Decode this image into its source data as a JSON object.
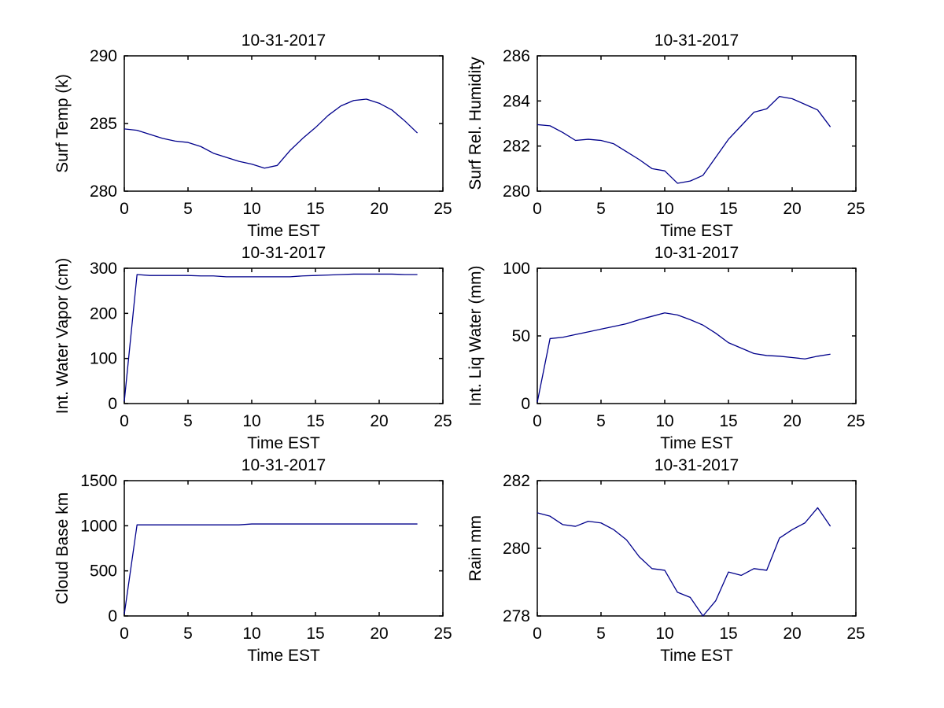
{
  "figure": {
    "background": "#ffffff",
    "line_color": "#00008B",
    "axis_color": "#000000"
  },
  "chart_data": [
    {
      "id": "surf-temp",
      "type": "line",
      "title": "10-31-2017",
      "xlabel": "Time EST",
      "ylabel": "Surf Temp (k)",
      "xlim": [
        0,
        25
      ],
      "ylim": [
        280,
        290
      ],
      "xticks": [
        0,
        5,
        10,
        15,
        20,
        25
      ],
      "yticks": [
        280,
        285,
        290
      ],
      "grid": false,
      "legend": "none",
      "x": [
        0,
        1,
        2,
        3,
        4,
        5,
        6,
        7,
        8,
        9,
        10,
        11,
        12,
        13,
        14,
        15,
        16,
        17,
        18,
        19,
        20,
        21,
        22,
        23
      ],
      "y": [
        284.6,
        284.5,
        284.2,
        283.9,
        283.7,
        283.6,
        283.3,
        282.8,
        282.5,
        282.2,
        282.0,
        281.7,
        281.9,
        283.0,
        283.9,
        284.7,
        285.6,
        286.3,
        286.7,
        286.8,
        286.5,
        286.0,
        285.2,
        284.3
      ]
    },
    {
      "id": "surf-rel-humidity",
      "type": "line",
      "title": "10-31-2017",
      "xlabel": "Time EST",
      "ylabel": "Surf Rel. Humidity",
      "xlim": [
        0,
        25
      ],
      "ylim": [
        280,
        286
      ],
      "xticks": [
        0,
        5,
        10,
        15,
        20,
        25
      ],
      "yticks": [
        280,
        282,
        284,
        286
      ],
      "grid": false,
      "legend": "none",
      "x": [
        0,
        1,
        2,
        3,
        4,
        5,
        6,
        7,
        8,
        9,
        10,
        11,
        12,
        13,
        14,
        15,
        16,
        17,
        18,
        19,
        20,
        21,
        22,
        23
      ],
      "y": [
        282.95,
        282.9,
        282.6,
        282.25,
        282.3,
        282.25,
        282.1,
        281.75,
        281.4,
        281.0,
        280.9,
        280.35,
        280.45,
        280.7,
        281.5,
        282.3,
        282.9,
        283.5,
        283.65,
        284.2,
        284.1,
        283.85,
        283.6,
        282.85
      ]
    },
    {
      "id": "int-water-vapor",
      "type": "line",
      "title": "10-31-2017",
      "xlabel": "Time EST",
      "ylabel": "Int. Water Vapor (cm)",
      "xlim": [
        0,
        25
      ],
      "ylim": [
        0,
        300
      ],
      "xticks": [
        0,
        5,
        10,
        15,
        20,
        25
      ],
      "yticks": [
        0,
        100,
        200,
        300
      ],
      "grid": false,
      "legend": "none",
      "x": [
        0,
        1,
        2,
        3,
        4,
        5,
        6,
        7,
        8,
        9,
        10,
        11,
        12,
        13,
        14,
        15,
        16,
        17,
        18,
        19,
        20,
        21,
        22,
        23
      ],
      "y": [
        5,
        286,
        284,
        284,
        284,
        284,
        283,
        283,
        281,
        281,
        281,
        281,
        281,
        281,
        283,
        284,
        285,
        286,
        287,
        287,
        287,
        287,
        286,
        286
      ]
    },
    {
      "id": "int-liq-water",
      "type": "line",
      "title": "10-31-2017",
      "xlabel": "Time EST",
      "ylabel": "Int. Liq Water (mm)",
      "xlim": [
        0,
        25
      ],
      "ylim": [
        0,
        100
      ],
      "xticks": [
        0,
        5,
        10,
        15,
        20,
        25
      ],
      "yticks": [
        0,
        50,
        100
      ],
      "grid": false,
      "legend": "none",
      "x": [
        0,
        1,
        2,
        3,
        4,
        5,
        6,
        7,
        8,
        9,
        10,
        11,
        12,
        13,
        14,
        15,
        16,
        17,
        18,
        19,
        20,
        21,
        22,
        23
      ],
      "y": [
        1,
        48,
        49,
        51,
        53,
        55,
        57,
        59,
        62,
        64.5,
        67,
        65.5,
        62,
        58,
        52,
        45,
        41,
        37,
        35.5,
        35,
        34,
        33,
        35,
        36.5
      ]
    },
    {
      "id": "cloud-base",
      "type": "line",
      "title": "10-31-2017",
      "xlabel": "Time EST",
      "ylabel": "Cloud Base km",
      "xlim": [
        0,
        25
      ],
      "ylim": [
        0,
        1500
      ],
      "xticks": [
        0,
        5,
        10,
        15,
        20,
        25
      ],
      "yticks": [
        0,
        500,
        1000,
        1500
      ],
      "grid": false,
      "legend": "none",
      "x": [
        0,
        1,
        2,
        3,
        4,
        5,
        6,
        7,
        8,
        9,
        10,
        11,
        12,
        13,
        14,
        15,
        16,
        17,
        18,
        19,
        20,
        21,
        22,
        23
      ],
      "y": [
        20,
        1010,
        1010,
        1010,
        1010,
        1010,
        1010,
        1010,
        1010,
        1010,
        1020,
        1020,
        1020,
        1020,
        1020,
        1020,
        1020,
        1020,
        1020,
        1020,
        1020,
        1020,
        1020,
        1020
      ]
    },
    {
      "id": "rain",
      "type": "line",
      "title": "10-31-2017",
      "xlabel": "Time EST",
      "ylabel": "Rain mm",
      "xlim": [
        0,
        25
      ],
      "ylim": [
        278,
        282
      ],
      "xticks": [
        0,
        5,
        10,
        15,
        20,
        25
      ],
      "yticks": [
        278,
        280,
        282
      ],
      "grid": false,
      "legend": "none",
      "x": [
        0,
        1,
        2,
        3,
        4,
        5,
        6,
        7,
        8,
        9,
        10,
        11,
        12,
        13,
        14,
        15,
        16,
        17,
        18,
        19,
        20,
        21,
        22,
        23
      ],
      "y": [
        281.05,
        280.95,
        280.7,
        280.65,
        280.8,
        280.75,
        280.55,
        280.25,
        279.75,
        279.4,
        279.35,
        278.7,
        278.55,
        278.0,
        278.45,
        279.3,
        279.2,
        279.4,
        279.35,
        280.3,
        280.55,
        280.75,
        281.2,
        280.65
      ]
    }
  ]
}
